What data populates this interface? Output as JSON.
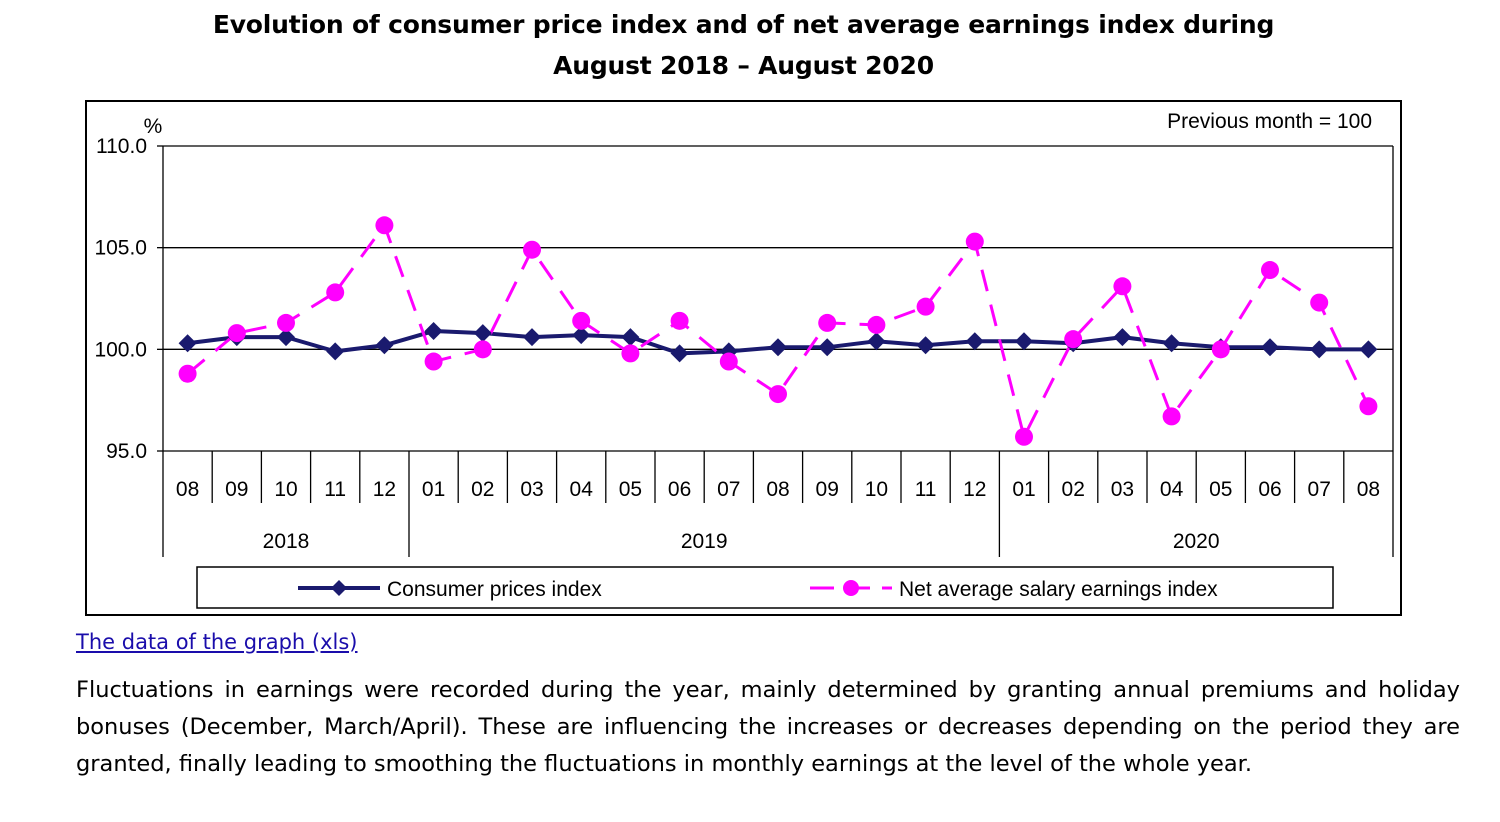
{
  "chart_data": {
    "type": "line",
    "title_line1": "Evolution of consumer price index and of net average earnings index during",
    "title_line2": "August 2018 – August 2020",
    "ylabel": "%",
    "note": "Previous month = 100",
    "ylim": [
      95.0,
      110.0
    ],
    "yticks": [
      95.0,
      100.0,
      105.0,
      110.0
    ],
    "ytick_labels": [
      "95.0",
      "100.0",
      "105.0",
      "110.0"
    ],
    "categories": [
      "08",
      "09",
      "10",
      "11",
      "12",
      "01",
      "02",
      "03",
      "04",
      "05",
      "06",
      "07",
      "08",
      "09",
      "10",
      "11",
      "12",
      "01",
      "02",
      "03",
      "04",
      "05",
      "06",
      "07",
      "08"
    ],
    "years": [
      {
        "label": "2018",
        "months": 5
      },
      {
        "label": "2019",
        "months": 12
      },
      {
        "label": "2020",
        "months": 8
      }
    ],
    "series": [
      {
        "name": "Consumer prices index",
        "color": "#1a1a6e",
        "marker": "diamond",
        "line": "solid",
        "values": [
          100.3,
          100.6,
          100.6,
          99.9,
          100.2,
          100.9,
          100.8,
          100.6,
          100.7,
          100.6,
          99.8,
          99.9,
          100.1,
          100.1,
          100.4,
          100.2,
          100.4,
          100.4,
          100.3,
          100.6,
          100.3,
          100.1,
          100.1,
          100.0,
          100.0
        ]
      },
      {
        "name": "Net average salary earnings index",
        "color": "#ff00ff",
        "marker": "circle",
        "line": "dashed",
        "values": [
          98.8,
          100.8,
          101.3,
          102.8,
          106.1,
          99.4,
          100.0,
          104.9,
          101.4,
          99.8,
          101.4,
          99.4,
          97.8,
          101.3,
          101.2,
          102.1,
          105.3,
          95.7,
          100.5,
          103.1,
          96.7,
          100.0,
          103.9,
          102.3,
          97.2
        ]
      }
    ],
    "grid": true,
    "legend": "bottom"
  },
  "link_text": "The data of the graph (xls)",
  "paragraph": "Fluctuations in earnings were recorded during the year, mainly determined by granting annual premiums and holiday bonuses (December, March/April). These are influencing the increases or decreases depending on the period they are granted, finally leading to smoothing the fluctuations in monthly earnings at the level of the whole year."
}
